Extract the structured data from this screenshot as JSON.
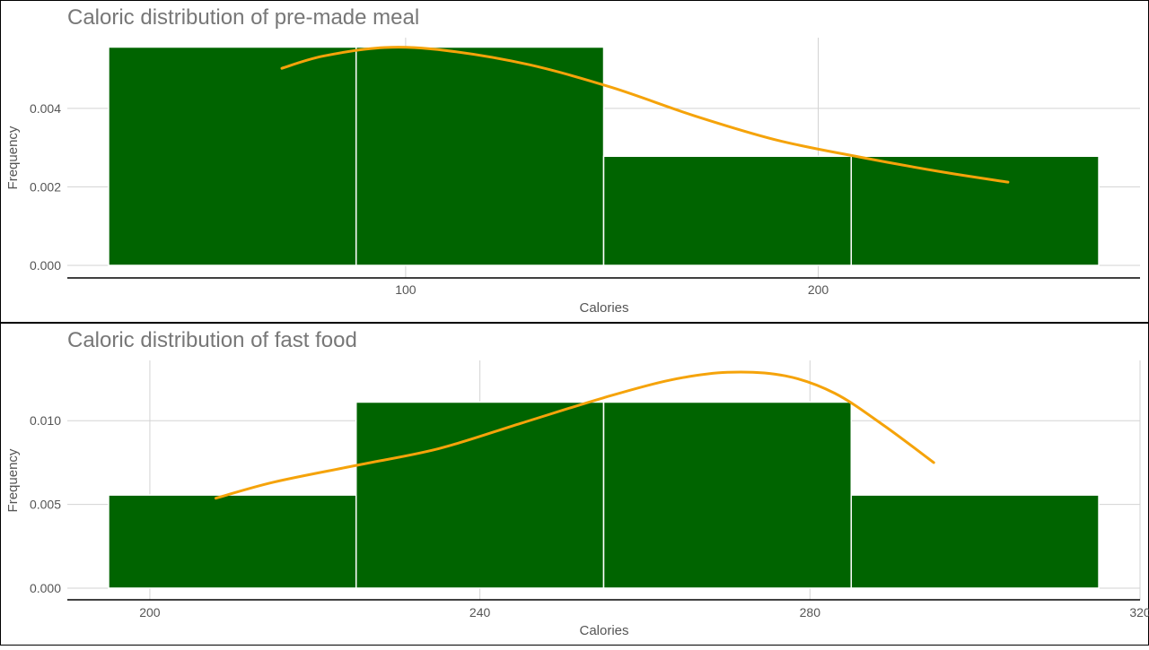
{
  "colors": {
    "bar_fill": "#006400",
    "bar_stroke": "#ffffff",
    "density_line": "#f5a30a",
    "grid": "#d3d3d3",
    "axis_line": "#000000",
    "title_text": "#777777",
    "label_text": "#555555",
    "panel_border": "#000000"
  },
  "chart_data": [
    {
      "type": "bar",
      "subtype": "histogram-with-density",
      "title": "Caloric distribution of pre-made meal",
      "xlabel": "Calories",
      "ylabel": "Frequency",
      "xlim": [
        18,
        278
      ],
      "ylim": [
        0,
        0.0058
      ],
      "xticks": [
        100,
        200
      ],
      "xtick_labels": [
        "100",
        "200"
      ],
      "yticks": [
        0,
        0.002,
        0.004
      ],
      "ytick_labels": [
        "0.000",
        "0.002",
        "0.004"
      ],
      "grid": true,
      "bins": [
        {
          "x0": 28,
          "x1": 88,
          "value": 0.00556
        },
        {
          "x0": 88,
          "x1": 148,
          "value": 0.00556
        },
        {
          "x0": 148,
          "x1": 208,
          "value": 0.00278
        },
        {
          "x0": 208,
          "x1": 268,
          "value": 0.00278
        }
      ],
      "density": [
        {
          "x": 70,
          "y": 0.00502
        },
        {
          "x": 80,
          "y": 0.00533
        },
        {
          "x": 95,
          "y": 0.00555
        },
        {
          "x": 110,
          "y": 0.00547
        },
        {
          "x": 130,
          "y": 0.00511
        },
        {
          "x": 150,
          "y": 0.00453
        },
        {
          "x": 170,
          "y": 0.00381
        },
        {
          "x": 190,
          "y": 0.00319
        },
        {
          "x": 210,
          "y": 0.00276
        },
        {
          "x": 230,
          "y": 0.00238
        },
        {
          "x": 246,
          "y": 0.00212
        }
      ]
    },
    {
      "type": "bar",
      "subtype": "histogram-with-density",
      "title": "Caloric distribution of fast food",
      "xlabel": "Calories",
      "ylabel": "Frequency",
      "xlim": [
        190,
        320
      ],
      "ylim": [
        0,
        0.0136
      ],
      "xticks": [
        200,
        240,
        280,
        320
      ],
      "xtick_labels": [
        "200",
        "240",
        "280",
        "320"
      ],
      "yticks": [
        0,
        0.005,
        0.01
      ],
      "ytick_labels": [
        "0.000",
        "0.005",
        "0.010"
      ],
      "grid": true,
      "bins": [
        {
          "x0": 195,
          "x1": 225,
          "value": 0.00556
        },
        {
          "x0": 225,
          "x1": 255,
          "value": 0.01111
        },
        {
          "x0": 255,
          "x1": 285,
          "value": 0.01111
        },
        {
          "x0": 285,
          "x1": 315,
          "value": 0.00556
        }
      ],
      "density": [
        {
          "x": 208,
          "y": 0.00537
        },
        {
          "x": 215,
          "y": 0.00633
        },
        {
          "x": 225,
          "y": 0.00733
        },
        {
          "x": 235,
          "y": 0.00833
        },
        {
          "x": 245,
          "y": 0.00985
        },
        {
          "x": 255,
          "y": 0.01137
        },
        {
          "x": 263,
          "y": 0.01242
        },
        {
          "x": 270,
          "y": 0.01289
        },
        {
          "x": 277,
          "y": 0.01268
        },
        {
          "x": 283,
          "y": 0.01164
        },
        {
          "x": 289,
          "y": 0.0097
        },
        {
          "x": 295,
          "y": 0.0075
        }
      ]
    }
  ]
}
